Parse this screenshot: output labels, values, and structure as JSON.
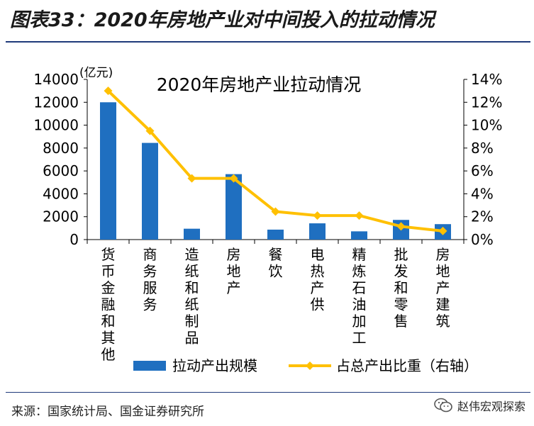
{
  "figure": {
    "title": "图表33：2020年房地产业对中间投入的拉动情况",
    "source": "来源：国家统计局、国金证券研究所",
    "watermark": "赵伟宏观探索"
  },
  "colors": {
    "bar": "#1f6fc0",
    "line": "#ffc000",
    "rule": "#1f3a7a",
    "axis": "#000000"
  },
  "chart_data": {
    "type": "bar",
    "title": "2020年房地产业拉动情况",
    "y_unit": "(亿元)",
    "categories": [
      "货币金融和其他",
      "商务服务",
      "造纸和纸制品",
      "房地产",
      "餐饮",
      "电热产供",
      "精炼石油加工",
      "批发和零售",
      "房地产建筑"
    ],
    "ylim": [
      0,
      14000
    ],
    "yticks": [
      "0",
      "2000",
      "4000",
      "6000",
      "8000",
      "10000",
      "12000",
      "14000"
    ],
    "y2lim": [
      0,
      14
    ],
    "y2ticks": [
      "0%",
      "2%",
      "4%",
      "6%",
      "8%",
      "10%",
      "12%",
      "14%"
    ],
    "series": [
      {
        "name": "拉动产出规模",
        "type": "bar",
        "axis": "left",
        "values": [
          12000,
          8450,
          950,
          5720,
          870,
          1420,
          720,
          1720,
          1350
        ]
      },
      {
        "name": "占总产出比重（右轴）",
        "type": "line",
        "axis": "right",
        "values": [
          13.0,
          9.5,
          5.35,
          5.35,
          2.45,
          2.1,
          2.1,
          1.15,
          0.75
        ]
      }
    ],
    "legend_position": "bottom",
    "grid": false
  }
}
